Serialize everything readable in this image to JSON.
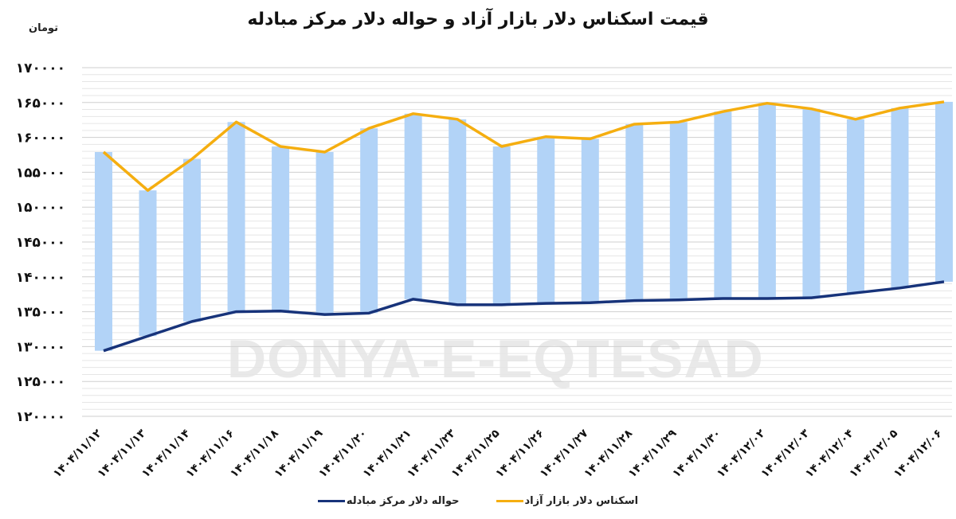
{
  "title": "قیمت اسکناس دلار بازار آزاد و حواله دلار مرکز مبادله",
  "unit_label": "تومان",
  "watermark": "DONYA-E-EQTESAD",
  "colors": {
    "free_market_line": "#F5AE10",
    "exchange_center_line": "#17337A",
    "bar_fill": "#B2D3F7",
    "grid_major": "#CFCFCF",
    "grid_minor": "#E6E6E6"
  },
  "legend": [
    {
      "label": "اسکناس دلار بازار آزاد",
      "color": "#F5AE10"
    },
    {
      "label": "حواله دلار مرکز مبادله",
      "color": "#17337A"
    }
  ],
  "chart_data": {
    "type": "line",
    "title": "قیمت اسکناس دلار بازار آزاد و حواله دلار مرکز مبادله",
    "xlabel": "",
    "ylabel": "تومان",
    "ylim": [
      120000,
      170000
    ],
    "yticks": [
      120000,
      125000,
      130000,
      135000,
      140000,
      145000,
      150000,
      155000,
      160000,
      165000,
      170000
    ],
    "ytick_labels": [
      "۱۲۰۰۰۰",
      "۱۲۵۰۰۰",
      "۱۳۰۰۰۰",
      "۱۳۵۰۰۰",
      "۱۴۰۰۰۰",
      "۱۴۵۰۰۰",
      "۱۵۰۰۰۰",
      "۱۵۵۰۰۰",
      "۱۶۰۰۰۰",
      "۱۶۵۰۰۰",
      "۱۷۰۰۰۰"
    ],
    "grid": true,
    "legend_position": "bottom",
    "categories": [
      "۱۴۰۴/۱۱/۱۲",
      "۱۴۰۴/۱۱/۱۳",
      "۱۴۰۴/۱۱/۱۴",
      "۱۴۰۴/۱۱/۱۶",
      "۱۴۰۴/۱۱/۱۸",
      "۱۴۰۴/۱۱/۱۹",
      "۱۴۰۴/۱۱/۲۰",
      "۱۴۰۴/۱۱/۲۱",
      "۱۴۰۴/۱۱/۲۳",
      "۱۴۰۴/۱۱/۲۵",
      "۱۴۰۴/۱۱/۲۶",
      "۱۴۰۴/۱۱/۲۷",
      "۱۴۰۴/۱۱/۲۸",
      "۱۴۰۴/۱۱/۲۹",
      "۱۴۰۴/۱۱/۳۰",
      "۱۴۰۴/۱۲/۰۲",
      "۱۴۰۴/۱۲/۰۳",
      "۱۴۰۴/۱۲/۰۴",
      "۱۴۰۴/۱۲/۰۵",
      "۱۴۰۴/۱۲/۰۶"
    ],
    "series": [
      {
        "name": "اسکناس دلار بازار آزاد",
        "color": "#F5AE10",
        "values": [
          157900,
          152400,
          156900,
          162200,
          158700,
          157900,
          161300,
          163400,
          162600,
          158700,
          160100,
          159800,
          161900,
          162200,
          163700,
          164900,
          164100,
          162600,
          164200,
          165100
        ]
      },
      {
        "name": "حواله دلار مرکز مبادله",
        "color": "#17337A",
        "values": [
          129400,
          131500,
          133600,
          135000,
          135100,
          134600,
          134800,
          136800,
          136000,
          136000,
          136200,
          136300,
          136600,
          136700,
          136900,
          136900,
          137000,
          137700,
          138400,
          139300
        ]
      }
    ],
    "gap_bars": {
      "description": "floating bars spanning from exchange-center rate to free-market rate",
      "color": "#B2D3F7"
    }
  }
}
